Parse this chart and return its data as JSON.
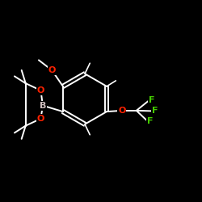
{
  "background_color": "#000000",
  "bond_color": "#ffffff",
  "O_color": "#ff2200",
  "B_color": "#ccbbbb",
  "F_color": "#44cc00",
  "bond_width": 1.4,
  "fig_w": 2.5,
  "fig_h": 2.5,
  "dpi": 100,
  "xlim": [
    0,
    10
  ],
  "ylim": [
    0,
    10
  ]
}
